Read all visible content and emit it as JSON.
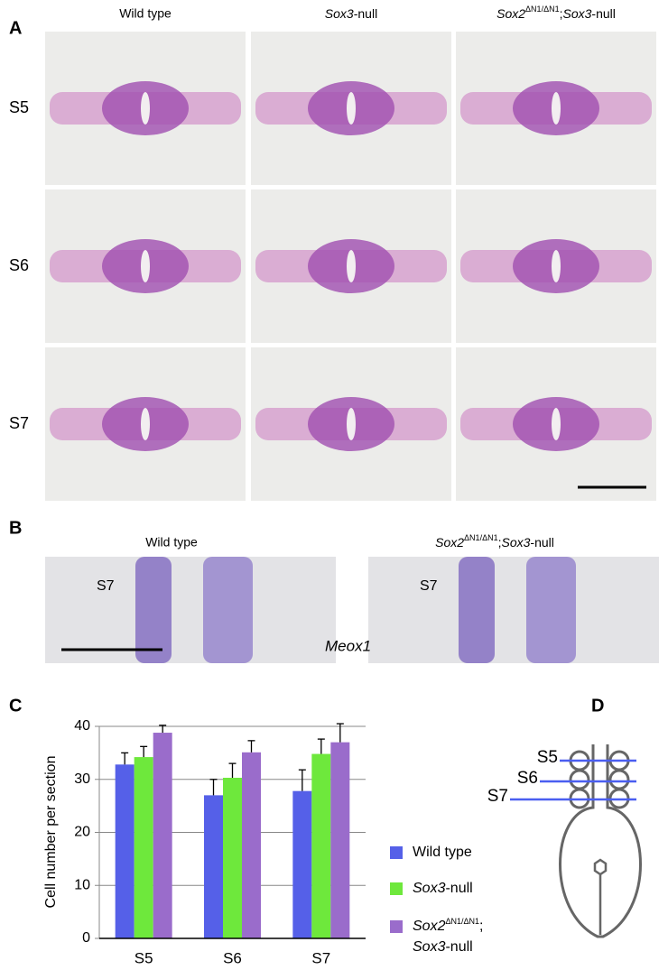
{
  "figure": {
    "panel_labels": [
      "A",
      "B",
      "C",
      "D"
    ],
    "panel_a": {
      "columns": [
        "Wild type",
        [
          "Sox3",
          "-null"
        ],
        [
          "Sox2",
          "ΔN1/ΔN1",
          ";",
          "Sox3",
          "-null"
        ]
      ],
      "rows": [
        "S5",
        "S6",
        "S7"
      ]
    },
    "panel_b": {
      "columns": [
        "Wild type",
        [
          "Sox2",
          "ΔN1/ΔN1",
          ";",
          "Sox3",
          "-null"
        ]
      ],
      "stage_labels": [
        "S7",
        "S7"
      ],
      "gene": "Meox1"
    },
    "panel_d": {
      "stages": [
        "S5",
        "S6",
        "S7"
      ]
    }
  },
  "chart_data": {
    "type": "bar",
    "y_label": "Cell number per section",
    "categories": [
      "S5",
      "S6",
      "S7"
    ],
    "series": [
      {
        "name": "Wild type",
        "color": "#5560e8",
        "values": [
          32.8,
          27,
          27.8
        ],
        "errors": [
          2.2,
          3,
          4
        ]
      },
      {
        "name": [
          "Sox3",
          "-null"
        ],
        "color": "#6ee83c",
        "values": [
          34.2,
          30.3,
          34.8
        ],
        "errors": [
          2,
          2.7,
          2.8
        ]
      },
      {
        "name": [
          "Sox2",
          "ΔN1/ΔN1",
          ";",
          "Sox3",
          "-null"
        ],
        "color": "#9a6ccb",
        "values": [
          38.8,
          35.1,
          37
        ],
        "errors": [
          1.4,
          2.2,
          3.5
        ]
      }
    ],
    "ylim": [
      0,
      40
    ],
    "yticks": [
      0,
      10,
      20,
      30,
      40
    ],
    "grid": true,
    "error_color": "#000000"
  }
}
